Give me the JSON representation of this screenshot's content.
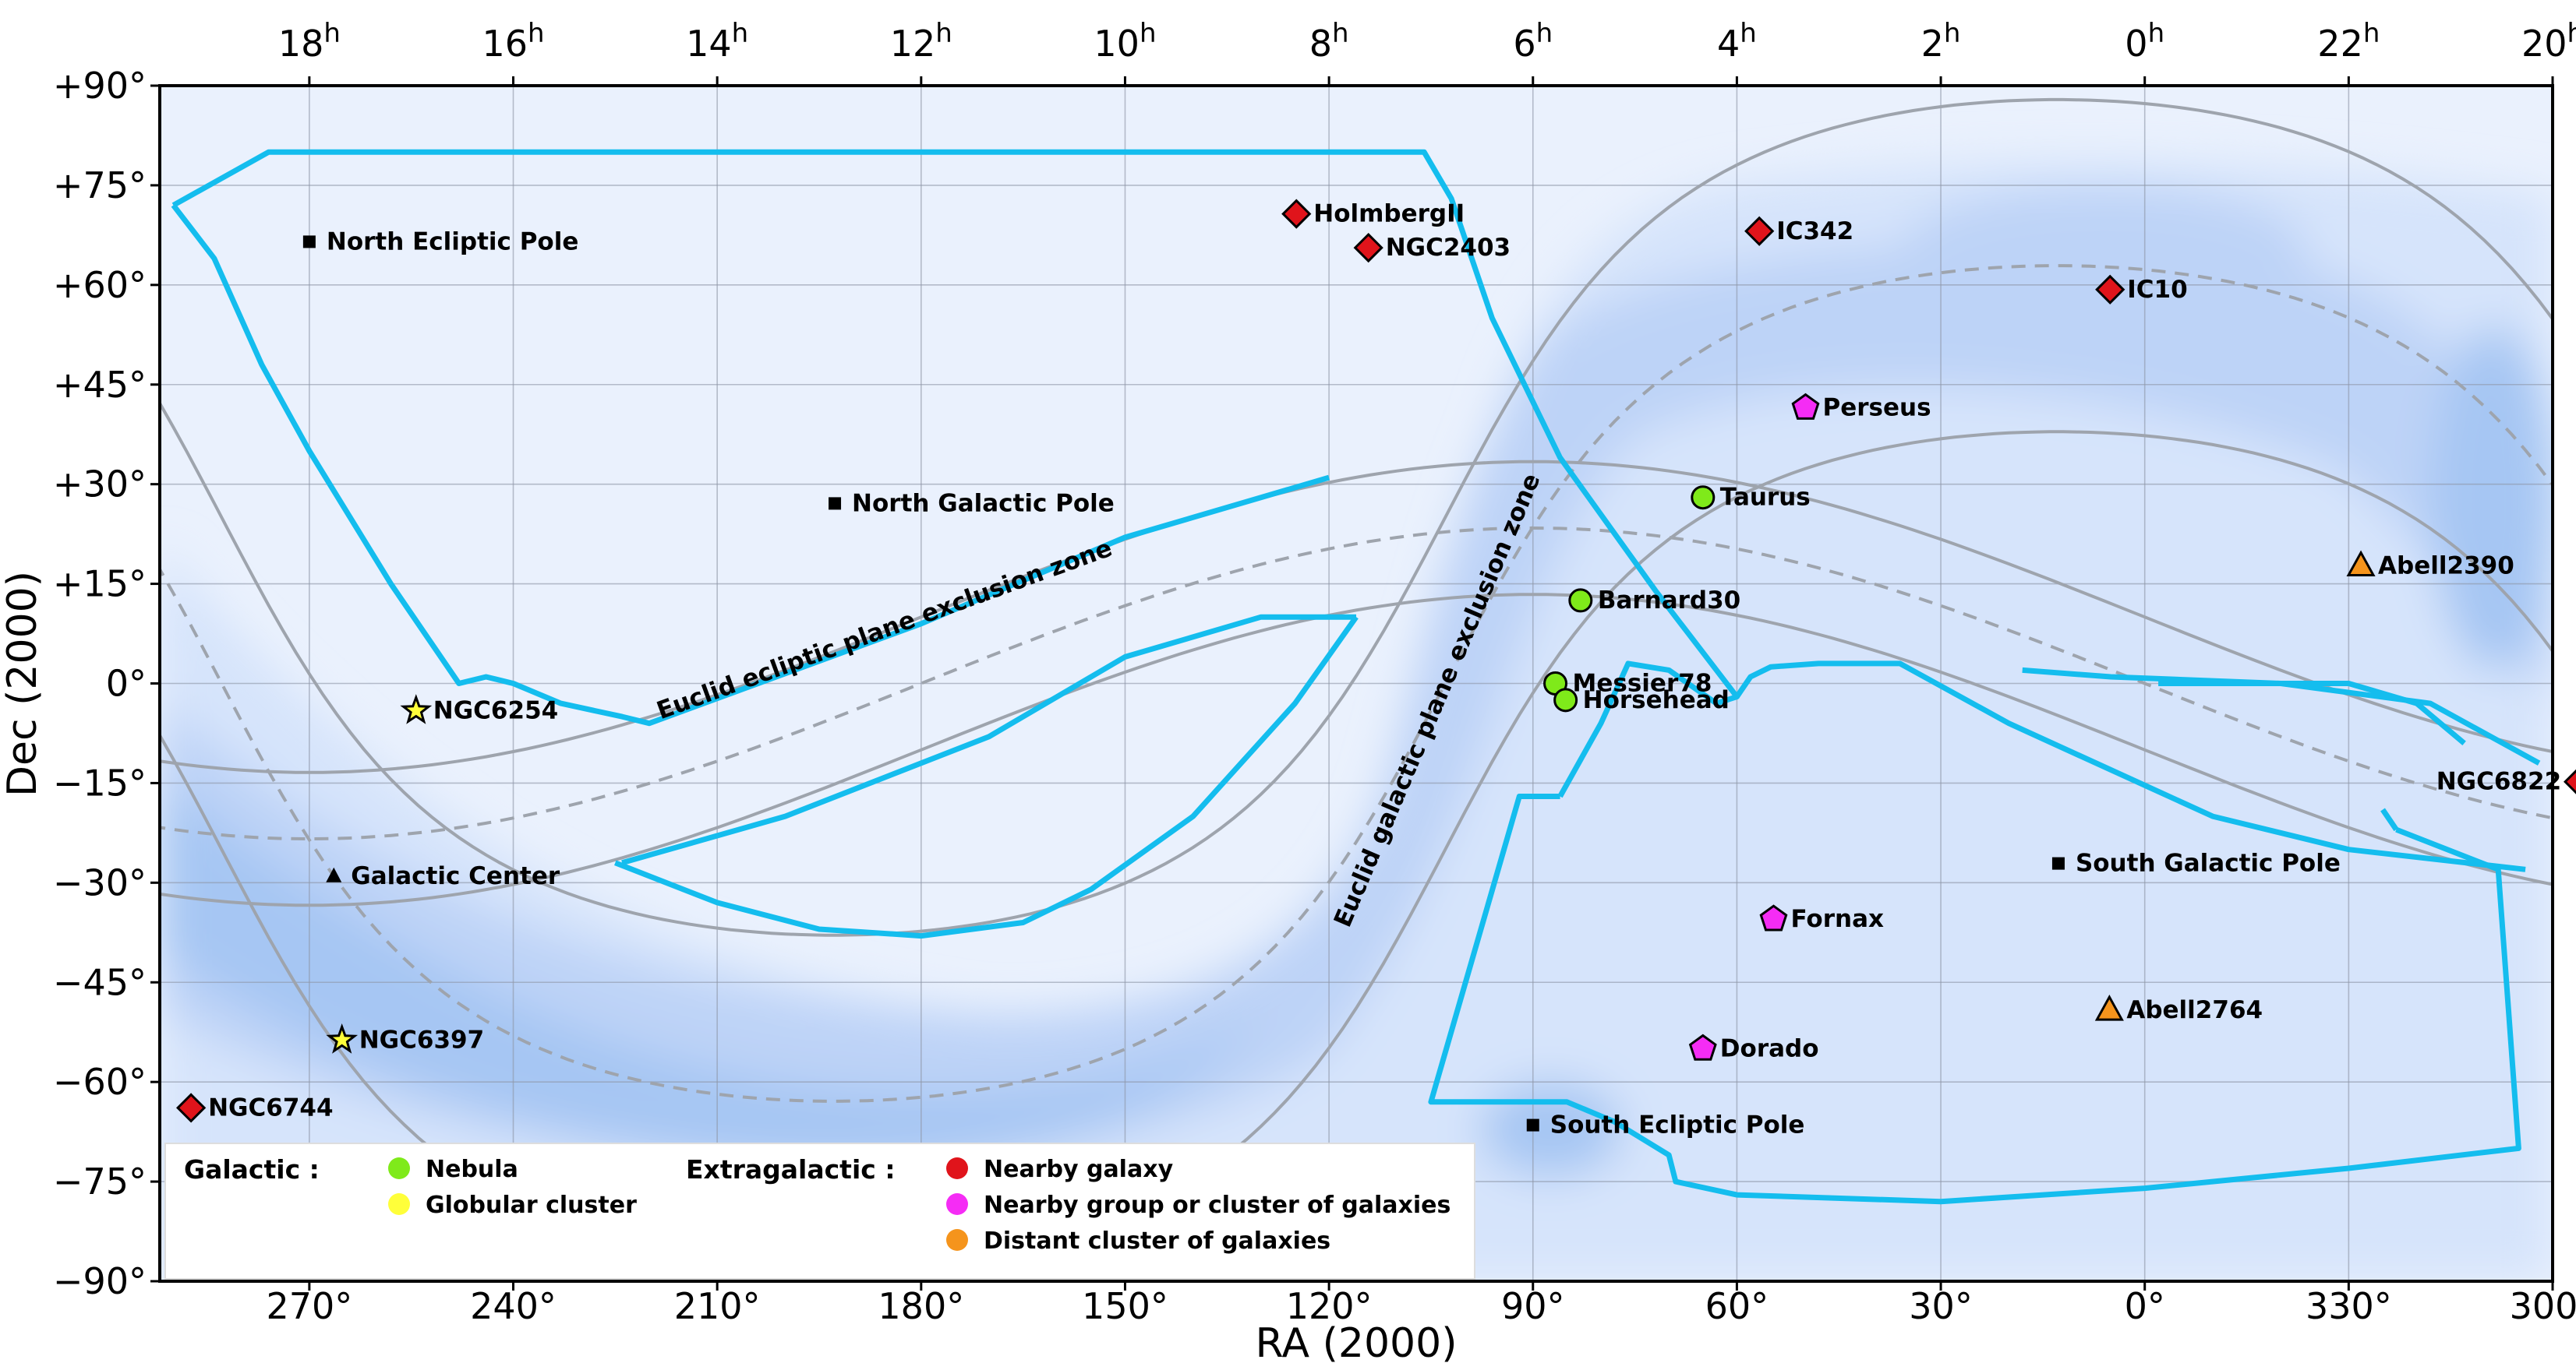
{
  "chart_data": {
    "type": "scatter",
    "projection": "rectangular RA/Dec sky map (RA increasing to the left)",
    "xlabel": "RA (2000)",
    "ylabel": "Dec (2000)",
    "xlim_ra_deg": [
      292,
      -60
    ],
    "ylim": [
      -90,
      90
    ],
    "grid": true,
    "bottom_ticks": [
      "270°",
      "240°",
      "210°",
      "180°",
      "150°",
      "120°",
      "90°",
      "60°",
      "30°",
      "0°",
      "330°",
      "300°"
    ],
    "bottom_tick_ra": [
      270,
      240,
      210,
      180,
      150,
      120,
      90,
      60,
      30,
      0,
      -30,
      -60
    ],
    "top_ticks": [
      {
        "label": "18",
        "sup": "h",
        "ra": 270
      },
      {
        "label": "16",
        "sup": "h",
        "ra": 240
      },
      {
        "label": "14",
        "sup": "h",
        "ra": 210
      },
      {
        "label": "12",
        "sup": "h",
        "ra": 180
      },
      {
        "label": "10",
        "sup": "h",
        "ra": 150
      },
      {
        "label": "8",
        "sup": "h",
        "ra": 120
      },
      {
        "label": "6",
        "sup": "h",
        "ra": 90
      },
      {
        "label": "4",
        "sup": "h",
        "ra": 60
      },
      {
        "label": "2",
        "sup": "h",
        "ra": 30
      },
      {
        "label": "0",
        "sup": "h",
        "ra": 0
      },
      {
        "label": "22",
        "sup": "h",
        "ra": -30
      },
      {
        "label": "20",
        "sup": "h",
        "ra": -60
      }
    ],
    "y_ticks": [
      {
        "label": "+90°",
        "dec": 90
      },
      {
        "label": "+75°",
        "dec": 75
      },
      {
        "label": "+60°",
        "dec": 60
      },
      {
        "label": "+45°",
        "dec": 45
      },
      {
        "label": "+30°",
        "dec": 30
      },
      {
        "label": "+15°",
        "dec": 15
      },
      {
        "label": "0°",
        "dec": 0
      },
      {
        "label": "−15°",
        "dec": -15
      },
      {
        "label": "−30°",
        "dec": -30
      },
      {
        "label": "−45°",
        "dec": -45
      },
      {
        "label": "−60°",
        "dec": -60
      },
      {
        "label": "−75°",
        "dec": -75
      },
      {
        "label": "−90°",
        "dec": -90
      }
    ],
    "zone_labels": [
      {
        "text": "Euclid ecliptic plane exclusion zone",
        "ra": 185,
        "dec": 7,
        "angle": -20
      },
      {
        "text": "Euclid galactic plane exclusion zone",
        "ra": 103,
        "dec": -3,
        "angle": -67
      }
    ],
    "objects": [
      {
        "name": "North Ecliptic Pole",
        "ra": 270,
        "dec": 66.5,
        "category": "reference"
      },
      {
        "name": "North Galactic Pole",
        "ra": 192.7,
        "dec": 27.1,
        "category": "reference"
      },
      {
        "name": "Galactic Center",
        "ra": 266.4,
        "dec": -29,
        "category": "reference"
      },
      {
        "name": "South Galactic Pole",
        "ra": 12.7,
        "dec": -27.1,
        "category": "reference"
      },
      {
        "name": "South Ecliptic Pole",
        "ra": 90,
        "dec": -66.5,
        "category": "reference"
      },
      {
        "name": "NGC6254",
        "ra": 254.3,
        "dec": -4.1,
        "category": "globular"
      },
      {
        "name": "NGC6397",
        "ra": 265.2,
        "dec": -53.7,
        "category": "globular"
      },
      {
        "name": "Taurus",
        "ra": 65,
        "dec": 28,
        "category": "nebula"
      },
      {
        "name": "Barnard30",
        "ra": 83,
        "dec": 12.5,
        "category": "nebula"
      },
      {
        "name": "Messier78",
        "ra": 86.7,
        "dec": 0,
        "category": "nebula"
      },
      {
        "name": "Horsehead",
        "ra": 85.2,
        "dec": -2.5,
        "category": "nebula"
      },
      {
        "name": "HolmbergII",
        "ra": 124.8,
        "dec": 70.7,
        "category": "nearby_galaxy"
      },
      {
        "name": "NGC2403",
        "ra": 114.2,
        "dec": 65.6,
        "category": "nearby_galaxy"
      },
      {
        "name": "IC342",
        "ra": 56.7,
        "dec": 68.1,
        "category": "nearby_galaxy"
      },
      {
        "name": "IC10",
        "ra": 5.1,
        "dec": 59.3,
        "category": "nearby_galaxy"
      },
      {
        "name": "NGC6822",
        "ra": -63.8,
        "dec": -14.8,
        "category": "nearby_galaxy"
      },
      {
        "name": "NGC6744",
        "ra": 287.4,
        "dec": -63.9,
        "category": "nearby_galaxy"
      },
      {
        "name": "Perseus",
        "ra": 49.9,
        "dec": 41.5,
        "category": "group"
      },
      {
        "name": "Fornax",
        "ra": 54.6,
        "dec": -35.5,
        "category": "group"
      },
      {
        "name": "Dorado",
        "ra": 65,
        "dec": -55,
        "category": "group"
      },
      {
        "name": "Abell2390",
        "ra": -31.8,
        "dec": 17.7,
        "category": "distant_cluster"
      },
      {
        "name": "Abell2764",
        "ra": 5.2,
        "dec": -49.2,
        "category": "distant_cluster"
      }
    ],
    "category_styles": {
      "reference": {
        "marker": "square",
        "color": "#000000"
      },
      "galactic_center": {
        "marker": "triangle",
        "color": "#000000"
      },
      "nebula": {
        "marker": "circle",
        "color": "#7fea1a"
      },
      "globular": {
        "marker": "star",
        "color": "#ffff3a"
      },
      "nearby_galaxy": {
        "marker": "diamond",
        "color": "#e0141b"
      },
      "group": {
        "marker": "pentagon",
        "color": "#f52cf5"
      },
      "distant_cluster": {
        "marker": "triangle",
        "color": "#f5941c"
      }
    },
    "colors": {
      "background": "#eaf1fd",
      "density_1": "#d6e4fb",
      "density_2": "#bdd3f7",
      "density_3": "#a6c6f3",
      "survey_outline": "#14bdee",
      "exclusion_line": "#9ea4ad"
    },
    "legend": {
      "placement": "bottom-left",
      "galactic_title": "Galactic :",
      "extragalactic_title": "Extragalactic :",
      "galactic_items": [
        {
          "label": "Nebula",
          "color": "#7fea1a"
        },
        {
          "label": "Globular cluster",
          "color": "#ffff3a"
        }
      ],
      "extragalactic_items": [
        {
          "label": "Nearby galaxy",
          "color": "#e0141b"
        },
        {
          "label": "Nearby group or cluster of galaxies",
          "color": "#f52cf5"
        },
        {
          "label": "Distant cluster of galaxies",
          "color": "#f5941c"
        }
      ]
    }
  }
}
